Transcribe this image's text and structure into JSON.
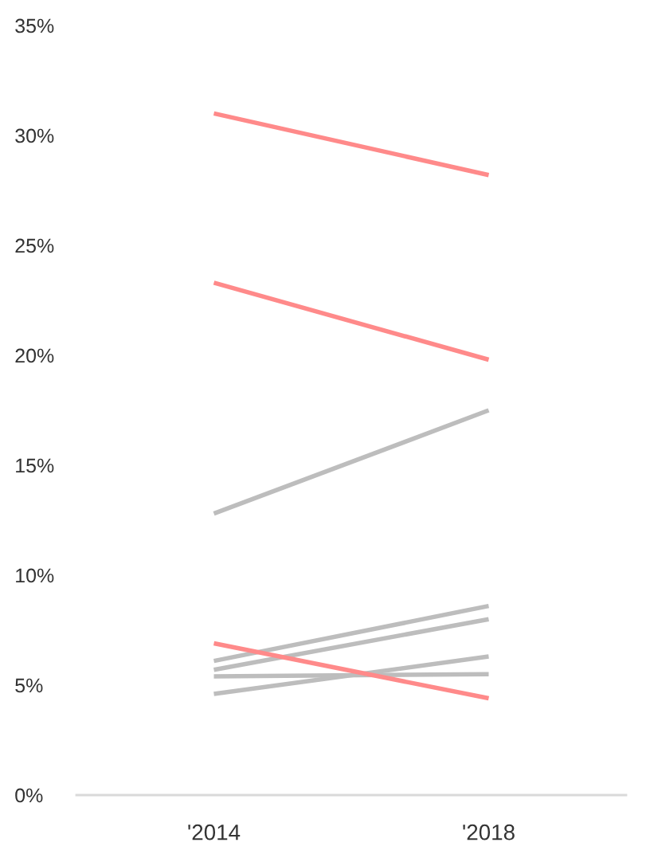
{
  "chart_data": {
    "type": "line",
    "categories": [
      "'2014",
      "'2018"
    ],
    "series": [
      {
        "color": "#ff8a8a",
        "values": [
          31.0,
          28.2
        ]
      },
      {
        "color": "#ff8a8a",
        "values": [
          23.3,
          19.8
        ]
      },
      {
        "color": "#bdbdbd",
        "values": [
          12.8,
          17.5
        ]
      },
      {
        "color": "#bdbdbd",
        "values": [
          6.1,
          8.6
        ]
      },
      {
        "color": "#bdbdbd",
        "values": [
          5.7,
          8.0
        ]
      },
      {
        "color": "#bdbdbd",
        "values": [
          5.4,
          5.5
        ]
      },
      {
        "color": "#bdbdbd",
        "values": [
          4.6,
          6.3
        ]
      },
      {
        "color": "#ff8a8a",
        "values": [
          6.9,
          4.4
        ]
      }
    ],
    "ylim": [
      0,
      35
    ],
    "yticks": [
      {
        "value": 0,
        "label": "0%"
      },
      {
        "value": 5,
        "label": "5%"
      },
      {
        "value": 10,
        "label": "10%"
      },
      {
        "value": 15,
        "label": "15%"
      },
      {
        "value": 20,
        "label": "20%"
      },
      {
        "value": 25,
        "label": "25%"
      },
      {
        "value": 30,
        "label": "30%"
      },
      {
        "value": 35,
        "label": "35%"
      }
    ],
    "line_style": "solid"
  }
}
